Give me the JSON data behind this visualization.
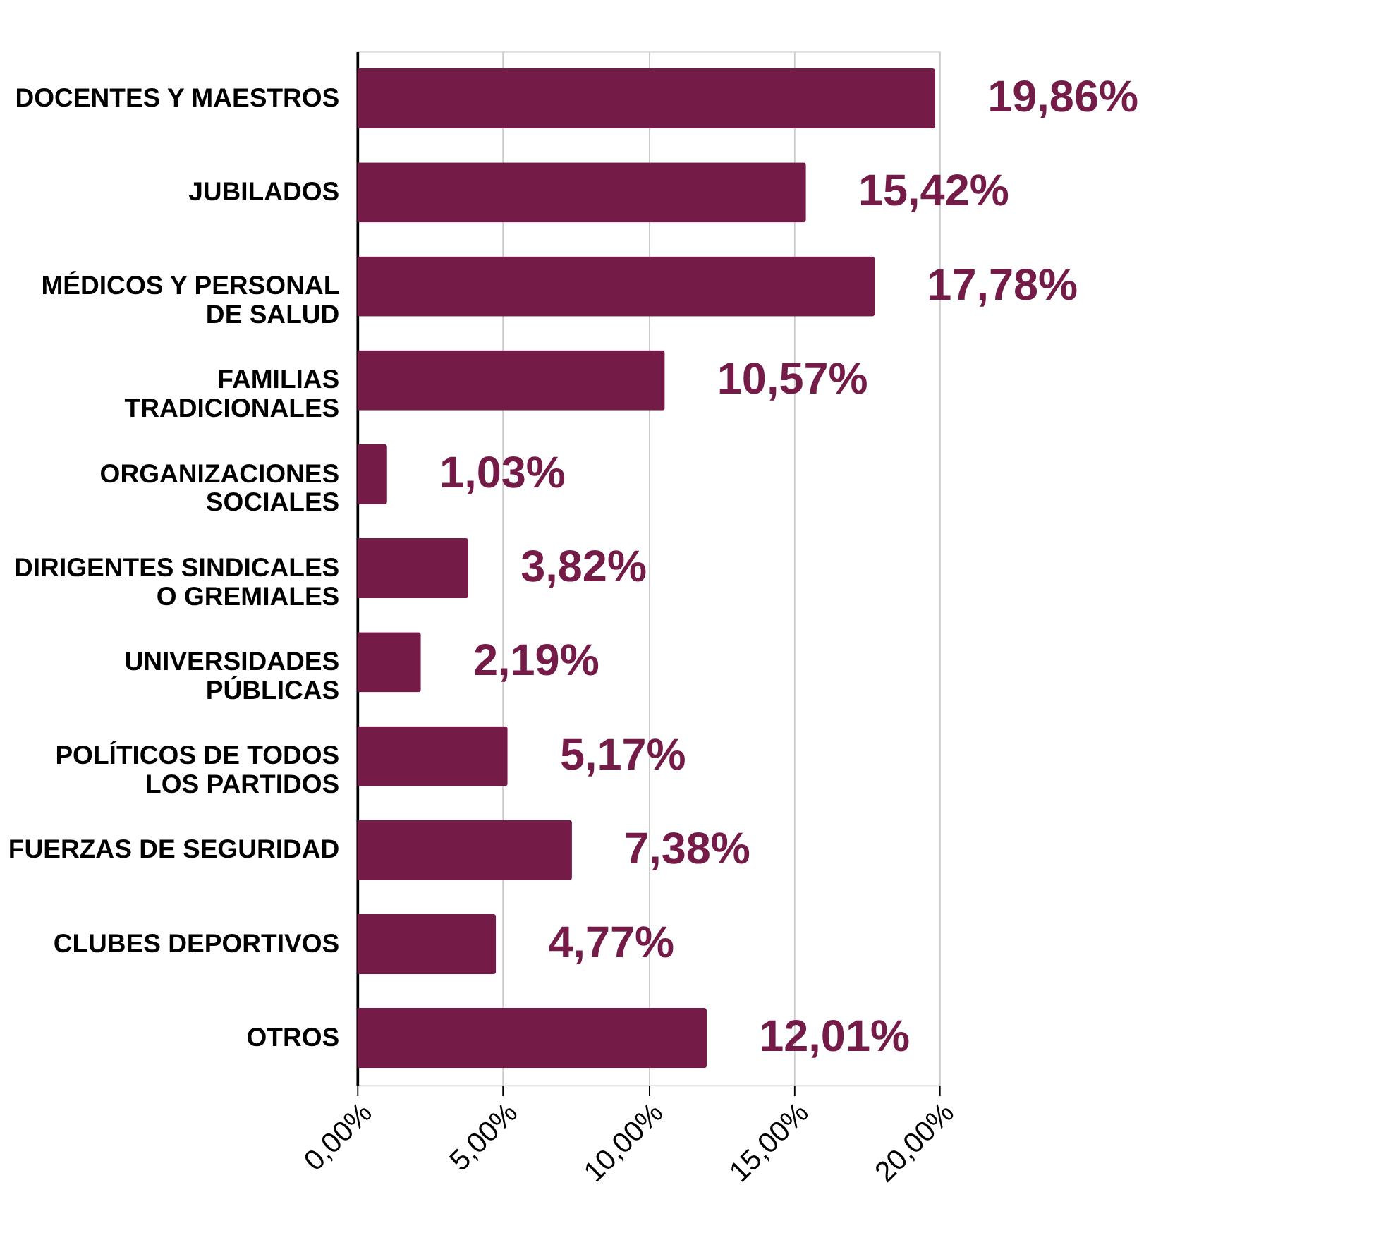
{
  "chart_data": {
    "type": "bar",
    "orientation": "horizontal",
    "categories": [
      "DOCENTES Y MAESTROS",
      "JUBILADOS",
      "MÉDICOS Y PERSONAL\nDE SALUD",
      "FAMILIAS\nTRADICIONALES",
      "ORGANIZACIONES\nSOCIALES",
      "DIRIGENTES SINDICALES\nO GREMIALES",
      "UNIVERSIDADES\nPÚBLICAS",
      "POLÍTICOS DE TODOS\nLOS PARTIDOS",
      "FUERZAS DE SEGURIDAD",
      "CLUBES DEPORTIVOS",
      "OTROS"
    ],
    "values": [
      19.86,
      15.42,
      17.78,
      10.57,
      1.03,
      3.82,
      2.19,
      5.17,
      7.38,
      4.77,
      12.01
    ],
    "value_labels": [
      "19,86%",
      "15,42%",
      "17,78%",
      "10,57%",
      "1,03%",
      "3,82%",
      "2,19%",
      "5,17%",
      "7,38%",
      "4,77%",
      "12,01%"
    ],
    "color": "#741b47",
    "xlim": [
      0,
      20
    ],
    "xticks": [
      {
        "value": 0,
        "label": "0,00%"
      },
      {
        "value": 5,
        "label": "5,00%"
      },
      {
        "value": 10,
        "label": "10,00%"
      },
      {
        "value": 15,
        "label": "15,00%"
      },
      {
        "value": 20,
        "label": "20,00%"
      }
    ],
    "grid": "x"
  }
}
